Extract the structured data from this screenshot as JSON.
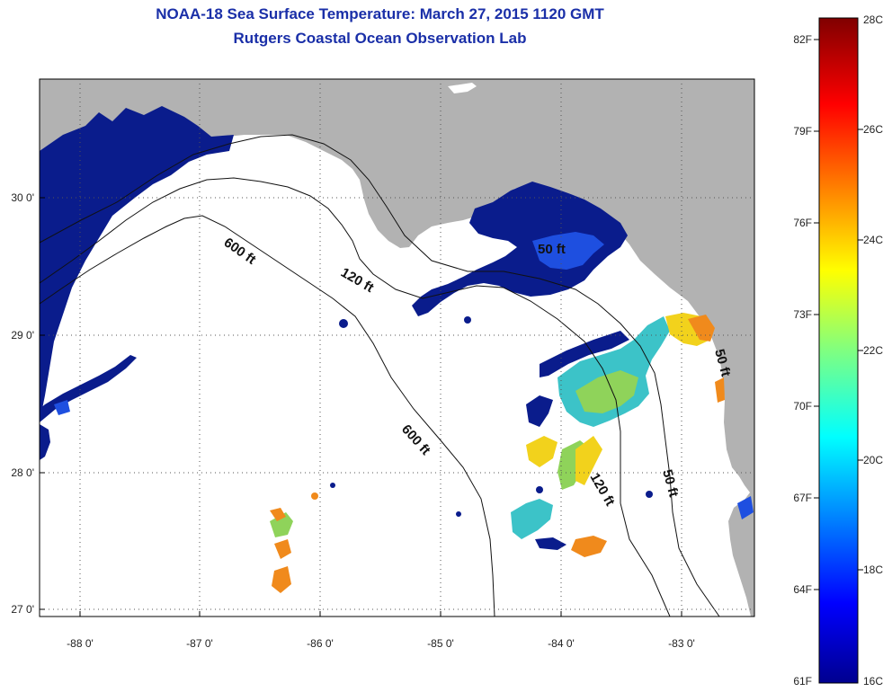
{
  "title": "NOAA-18 Sea Surface Temperature:  March 27, 2015 1120 GMT",
  "subtitle": "Rutgers Coastal Ocean Observation Lab",
  "map": {
    "lon_labels": [
      "-88 0'",
      "-87 0'",
      "-86 0'",
      "-85 0'",
      "-84 0'",
      "-83 0'"
    ],
    "lat_labels": [
      "30 0'",
      "29 0'",
      "28 0'",
      "27 0'"
    ],
    "contours": [
      "600 ft",
      "120 ft",
      "50 ft",
      "600 ft",
      "120 ft",
      "50 ft",
      "50 ft"
    ],
    "colors": {
      "land": "#b2b2b2",
      "ocean_nodata": "#ffffff",
      "cold": "#0a1c8c"
    }
  },
  "colorbar": {
    "fahrenheit": [
      "82F",
      "79F",
      "76F",
      "73F",
      "70F",
      "67F",
      "64F",
      "61F"
    ],
    "celsius": [
      "28C",
      "26C",
      "24C",
      "22C",
      "20C",
      "18C",
      "16C"
    ]
  }
}
